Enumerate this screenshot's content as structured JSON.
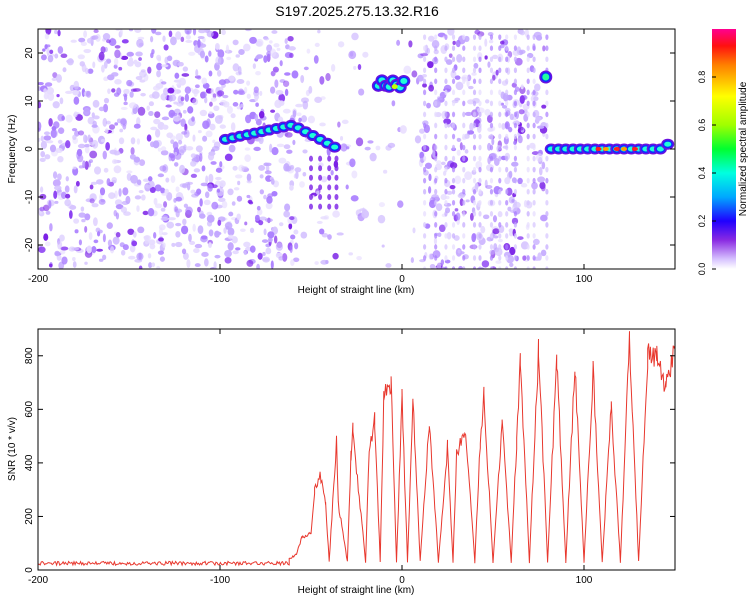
{
  "figure": {
    "title": "S197.2025.275.13.32.R16"
  },
  "chart_data": [
    {
      "type": "heatmap",
      "title": "S197.2025.275.13.32.R16",
      "xlabel": "Height of straight line (km)",
      "ylabel": "Frequency (Hz)",
      "xlim": [
        -200,
        150
      ],
      "ylim": [
        -25,
        25
      ],
      "xticks": [
        -200,
        -100,
        0,
        100
      ],
      "yticks": [
        -20,
        -10,
        0,
        10,
        20
      ],
      "colorbar": {
        "label": "Normalized spectral amplitude",
        "range": [
          0,
          1
        ],
        "ticks": [
          0.0,
          0.2,
          0.4,
          0.6,
          0.8
        ],
        "tick_labels": [
          "0.0",
          "0.2",
          "0.4",
          "0.6",
          "0.8"
        ]
      },
      "features": [
        {
          "name": "noise-region",
          "x_range": [
            -200,
            -60
          ],
          "description_level": "low"
        },
        {
          "name": "rising-tone",
          "points": [
            [
              -97,
              2
            ],
            [
              -90,
              2.5
            ],
            [
              -80,
              3
            ],
            [
              -70,
              4.5
            ],
            [
              -60,
              5
            ],
            [
              -50,
              3
            ],
            [
              -40,
              2
            ],
            [
              -35,
              0
            ]
          ]
        },
        {
          "name": "central-burst",
          "points": [
            [
              -12,
              14
            ],
            [
              -6,
              13
            ],
            [
              -2,
              12.5
            ],
            [
              2,
              14
            ]
          ]
        },
        {
          "name": "isolated-tone",
          "points": [
            [
              79,
              15
            ]
          ]
        },
        {
          "name": "flat-tone",
          "points": [
            [
              85,
              0
            ],
            [
              95,
              0
            ],
            [
              105,
              0
            ],
            [
              115,
              0
            ],
            [
              125,
              0
            ],
            [
              135,
              0
            ],
            [
              145,
              1
            ]
          ]
        }
      ]
    },
    {
      "type": "line",
      "xlabel": "Height of straight line (km)",
      "ylabel": "SNR (10 * v/v)",
      "xlim": [
        -200,
        150
      ],
      "ylim": [
        0,
        900
      ],
      "xticks": [
        -200,
        -100,
        0,
        100
      ],
      "yticks": [
        0,
        200,
        400,
        600,
        800
      ],
      "color": "#e8382e",
      "series": [
        {
          "name": "SNR",
          "x": [
            -200,
            -180,
            -160,
            -140,
            -120,
            -100,
            -80,
            -70,
            -62,
            -58,
            -55,
            -50,
            -48,
            -45,
            -42,
            -40,
            -36,
            -35,
            -30,
            -28,
            -27,
            -20,
            -18,
            -15,
            -12,
            -10,
            -6,
            -3,
            0,
            3,
            6,
            10,
            15,
            20,
            25,
            28,
            30,
            35,
            40,
            43,
            45,
            50,
            55,
            60,
            63,
            65,
            70,
            75,
            80,
            85,
            90,
            95,
            100,
            105,
            110,
            115,
            120,
            125,
            130,
            135,
            140,
            145,
            150
          ],
          "y": [
            20,
            22,
            18,
            20,
            22,
            20,
            22,
            25,
            40,
            60,
            120,
            140,
            300,
            350,
            250,
            30,
            480,
            250,
            30,
            430,
            520,
            30,
            450,
            560,
            30,
            650,
            700,
            30,
            640,
            30,
            630,
            30,
            560,
            30,
            460,
            30,
            440,
            520,
            30,
            470,
            650,
            30,
            560,
            30,
            480,
            780,
            30,
            820,
            30,
            790,
            30,
            760,
            30,
            740,
            30,
            610,
            30,
            860,
            30,
            800,
            790,
            680,
            850
          ]
        }
      ]
    }
  ]
}
